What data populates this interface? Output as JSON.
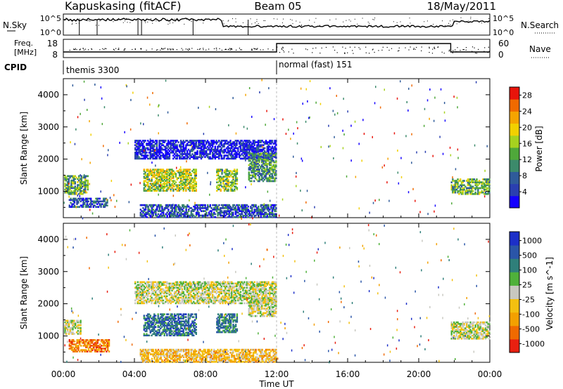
{
  "header": {
    "station": "Kapuskasing (fitACF)",
    "beam": "Beam 05",
    "date": "18/May/2011"
  },
  "summary": {
    "nsky_label": "N.Sky",
    "nsky_top": "10^5",
    "nsky_bottom": "10^0",
    "nsearch_label": "N.Search",
    "nsearch_top": "10^5",
    "nsearch_bottom": "10^0",
    "freq_label_1": "Freq.",
    "freq_label_2": "[MHz]",
    "freq_top": "18",
    "freq_bottom": "8",
    "nave_label": "Nave",
    "nave_top": "60",
    "nave_bottom": "0",
    "cpid_label": "CPID",
    "cpid_segments": [
      {
        "name": "themis 3300",
        "start_hour": 0,
        "end_hour": 12
      },
      {
        "name": "normal (fast) 151",
        "start_hour": 12,
        "end_hour": 24
      }
    ]
  },
  "chart_data": [
    {
      "type": "heatmap",
      "name": "power",
      "ylabel": "Slant Range [km]",
      "xlabel": "",
      "xlim": [
        0,
        24
      ],
      "ylim": [
        180,
        4500
      ],
      "yticks": [
        1000,
        2000,
        3000,
        4000
      ],
      "colorbar": {
        "label": "Power [dB]",
        "ticks": [
          "4",
          "8",
          "12",
          "16",
          "20",
          "24",
          "28"
        ],
        "range": [
          0,
          30
        ],
        "colors": [
          "#1400ff",
          "#2a3fb0",
          "#2f5b9a",
          "#3c8a6b",
          "#4fa83a",
          "#a6d21f",
          "#f2d000",
          "#f5a400",
          "#f06a00",
          "#e8140a"
        ]
      },
      "echo_regions": [
        {
          "t0": 0.05,
          "t1": 1.4,
          "r0": 900,
          "r1": 1500,
          "level": 0.42
        },
        {
          "t0": 0.3,
          "t1": 2.5,
          "r0": 500,
          "r1": 800,
          "level": 0.18
        },
        {
          "t0": 4.5,
          "t1": 7.5,
          "r0": 1000,
          "r1": 1700,
          "level": 0.55
        },
        {
          "t0": 8.6,
          "t1": 9.8,
          "r0": 1000,
          "r1": 1700,
          "level": 0.5
        },
        {
          "t0": 4.0,
          "t1": 12.0,
          "r0": 2000,
          "r1": 2600,
          "level": 0.08
        },
        {
          "t0": 10.4,
          "t1": 12.0,
          "r0": 1300,
          "r1": 2200,
          "level": 0.35
        },
        {
          "t0": 21.8,
          "t1": 24.0,
          "r0": 900,
          "r1": 1400,
          "level": 0.45
        },
        {
          "t0": 4.3,
          "t1": 12.0,
          "r0": 180,
          "r1": 600,
          "level": 0.2
        }
      ]
    },
    {
      "type": "heatmap",
      "name": "velocity",
      "ylabel": "Slant Range [km]",
      "xlabel": "Time UT",
      "xlim": [
        0,
        24
      ],
      "ylim": [
        180,
        4500
      ],
      "yticks": [
        1000,
        2000,
        3000,
        4000
      ],
      "xticks": [
        "00:00",
        "04:00",
        "08:00",
        "12:00",
        "16:00",
        "20:00",
        "00:00"
      ],
      "colorbar": {
        "label": "Velocity [m s^-1]",
        "ticks": [
          "1000",
          "500",
          "100",
          "25",
          "-25",
          "-100",
          "-500",
          "-1000"
        ],
        "range": [
          -1000,
          1000
        ],
        "colors": [
          "#1c2fc8",
          "#2a55a8",
          "#2f7f7a",
          "#4fb13a",
          "#c8c8c0",
          "#f3c010",
          "#f3a000",
          "#f06a00",
          "#e82010"
        ]
      },
      "echo_regions": [
        {
          "t0": 0.05,
          "t1": 1.0,
          "r0": 1050,
          "r1": 1500,
          "level": 0.0
        },
        {
          "t0": 0.3,
          "t1": 2.6,
          "r0": 500,
          "r1": 900,
          "level": -0.6
        },
        {
          "t0": 4.5,
          "t1": 7.5,
          "r0": 1000,
          "r1": 1700,
          "level": 0.55
        },
        {
          "t0": 8.6,
          "t1": 9.8,
          "r0": 1100,
          "r1": 1700,
          "level": 0.5
        },
        {
          "t0": 4.0,
          "t1": 12.0,
          "r0": 2000,
          "r1": 2700,
          "level": 0.0
        },
        {
          "t0": 10.4,
          "t1": 12.0,
          "r0": 1600,
          "r1": 2200,
          "level": 0.0
        },
        {
          "t0": 21.8,
          "t1": 24.0,
          "r0": 900,
          "r1": 1450,
          "level": 0.0
        },
        {
          "t0": 4.3,
          "t1": 12.0,
          "r0": 180,
          "r1": 600,
          "level": -0.3
        }
      ]
    }
  ]
}
